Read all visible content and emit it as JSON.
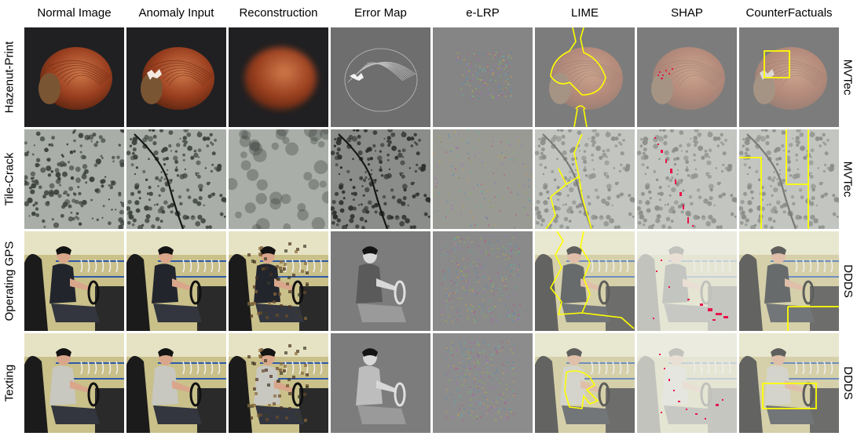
{
  "columns": [
    "Normal Image",
    "Anomaly Input",
    "Reconstruction",
    "Error Map",
    "e-LRP",
    "LIME",
    "SHAP",
    "CounterFactuals"
  ],
  "rows": [
    {
      "label": "Hazenut-Print",
      "dataset": "MVTec",
      "scene": "hazelnut"
    },
    {
      "label": "Tile-Crack",
      "dataset": "MVTec",
      "scene": "tile"
    },
    {
      "label": "Operating GPS",
      "dataset": "DDDS",
      "scene": "driver-gps"
    },
    {
      "label": "Texting",
      "dataset": "DDDS",
      "scene": "driver-text"
    }
  ],
  "colors": {
    "hazelnut": "#9a3f1f",
    "hazelnut_background": "#202022",
    "tile": "#a9aea8",
    "tile_spots": "#3d423e",
    "driver_background": "#c9c08a",
    "lime_outline": "#ffff00",
    "shap_marks": "#e8144a",
    "counterfactual_box": "#ffff00"
  }
}
